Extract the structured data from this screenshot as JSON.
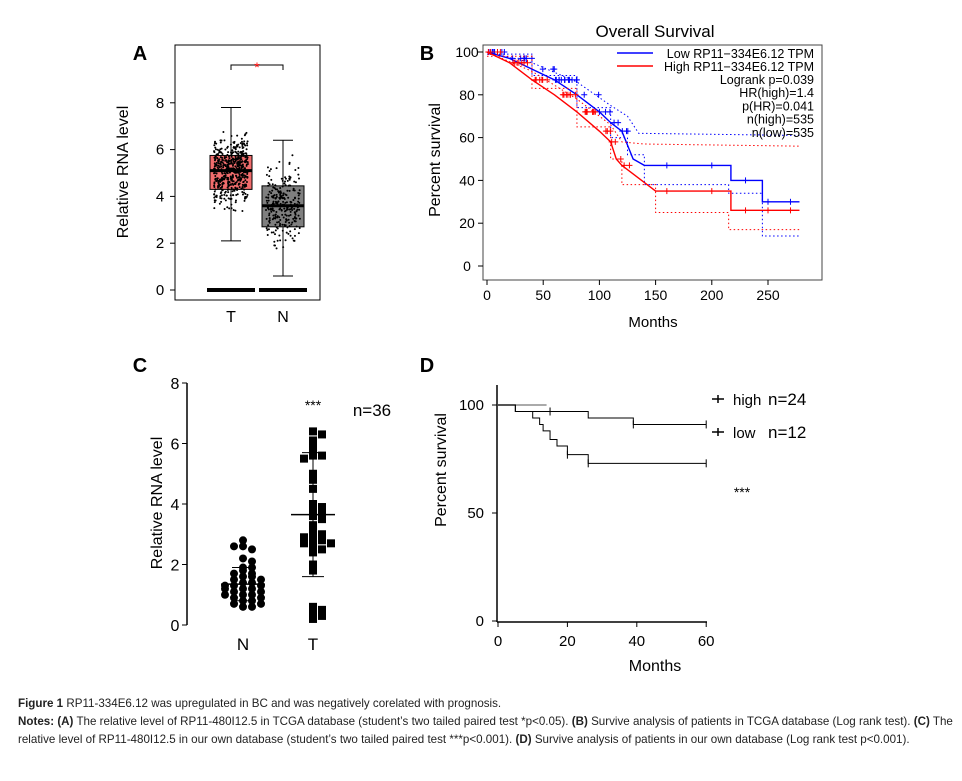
{
  "chart_data": [
    {
      "panel": "A",
      "type": "box",
      "ylabel": "Relative RNA level",
      "yticks": [
        0,
        2,
        4,
        6,
        8
      ],
      "ylim": [
        -0.3,
        10.5
      ],
      "categories": [
        "T",
        "N"
      ],
      "boxes": [
        {
          "category": "T",
          "color": "#f26d6d",
          "min": 2.1,
          "q1": 4.3,
          "median": 5.1,
          "q3": 5.75,
          "max": 7.8,
          "outlier_max": 9.2
        },
        {
          "category": "N",
          "color": "#7f7f7f",
          "min": 0.6,
          "q1": 2.7,
          "median": 3.6,
          "q3": 4.45,
          "max": 6.4,
          "outlier_max": 6.4
        }
      ],
      "significance": "*",
      "significance_color": "#ff0000"
    },
    {
      "panel": "B",
      "type": "line",
      "title": "Overall Survival",
      "xlabel": "Months",
      "ylabel": "Percent survival",
      "xticks": [
        0,
        50,
        100,
        150,
        200,
        250
      ],
      "yticks": [
        0,
        20,
        40,
        60,
        80,
        100
      ],
      "xlim": [
        0,
        280
      ],
      "ylim": [
        -3,
        103
      ],
      "series": [
        {
          "name": "Low RP11−334E6.12 TPM",
          "color": "#0000ff",
          "points": [
            [
              0,
              100
            ],
            [
              20,
              97
            ],
            [
              40,
              92
            ],
            [
              60,
              87
            ],
            [
              80,
              80
            ],
            [
              100,
              72
            ],
            [
              110,
              67
            ],
            [
              120,
              63
            ],
            [
              130,
              50
            ],
            [
              140,
              47
            ],
            [
              217,
              47
            ],
            [
              217,
              40
            ],
            [
              245,
              40
            ],
            [
              245,
              30
            ],
            [
              278,
              30
            ]
          ],
          "ci_upper": [
            [
              0,
              100
            ],
            [
              40,
              95
            ],
            [
              80,
              86
            ],
            [
              110,
              75
            ],
            [
              125,
              70
            ],
            [
              135,
              62
            ],
            [
              278,
              61
            ]
          ],
          "ci_lower": [
            [
              0,
              99
            ],
            [
              40,
              89
            ],
            [
              80,
              74
            ],
            [
              110,
              60
            ],
            [
              125,
              52
            ],
            [
              140,
              38
            ],
            [
              215,
              34
            ],
            [
              245,
              14
            ],
            [
              278,
              14
            ]
          ]
        },
        {
          "name": "High RP11−334E6.12 TPM",
          "color": "#ff0000",
          "points": [
            [
              0,
              100
            ],
            [
              20,
              95
            ],
            [
              40,
              87
            ],
            [
              60,
              80
            ],
            [
              80,
              72
            ],
            [
              100,
              63
            ],
            [
              110,
              58
            ],
            [
              115,
              50
            ],
            [
              120,
              47
            ],
            [
              130,
              43
            ],
            [
              150,
              35
            ],
            [
              217,
              35
            ],
            [
              217,
              26
            ],
            [
              278,
              26
            ]
          ],
          "ci_upper": [
            [
              0,
              100
            ],
            [
              40,
              91
            ],
            [
              80,
              78
            ],
            [
              110,
              66
            ],
            [
              120,
              58
            ],
            [
              140,
              57
            ],
            [
              278,
              56
            ]
          ],
          "ci_lower": [
            [
              0,
              98
            ],
            [
              40,
              83
            ],
            [
              80,
              65
            ],
            [
              110,
              50
            ],
            [
              120,
              38
            ],
            [
              150,
              25
            ],
            [
              215,
              17
            ],
            [
              278,
              17
            ]
          ]
        }
      ],
      "stats": [
        "Logrank p=0.039",
        "HR(high)=1.4",
        "p(HR)=0.041",
        "n(high)=535",
        "n(low)=535"
      ]
    },
    {
      "panel": "C",
      "type": "scatter",
      "ylabel": "Relative RNA level",
      "yticks": [
        0,
        2,
        4,
        6,
        8
      ],
      "ylim": [
        0,
        8
      ],
      "categories": [
        "N",
        "T"
      ],
      "annotation": "n=36",
      "significance": "***",
      "groups": [
        {
          "category": "N",
          "marker": "circle",
          "mean": 1.35,
          "sd": 0.55,
          "values": [
            2.8,
            2.6,
            2.5,
            2.6,
            2.2,
            2.1,
            1.9,
            1.8,
            1.7,
            1.6,
            1.6,
            1.5,
            1.5,
            1.4,
            1.4,
            1.3,
            1.3,
            1.3,
            1.2,
            1.2,
            1.1,
            1.1,
            1.0,
            1.0,
            0.9,
            0.9,
            0.8,
            0.8,
            0.7,
            0.7,
            0.6,
            0.6,
            1.9,
            1.7,
            1.0,
            1.2
          ]
        },
        {
          "category": "T",
          "marker": "square",
          "mean": 3.65,
          "sd": 2.05,
          "values": [
            6.4,
            6.3,
            6.1,
            5.9,
            5.7,
            5.6,
            5.6,
            5.5,
            5.0,
            4.5,
            4.0,
            3.8,
            3.7,
            3.6,
            3.5,
            3.3,
            3.2,
            3.0,
            3.0,
            2.9,
            2.8,
            2.8,
            2.7,
            2.7,
            2.6,
            2.5,
            2.4,
            2.0,
            1.8,
            0.6,
            0.5,
            0.4,
            0.3,
            0.2,
            3.9,
            4.8
          ]
        }
      ]
    },
    {
      "panel": "D",
      "type": "line",
      "xlabel": "Months",
      "ylabel": "Percent survival",
      "xticks": [
        0,
        20,
        40,
        60
      ],
      "yticks": [
        0,
        50,
        100
      ],
      "xlim": [
        0,
        60
      ],
      "ylim": [
        0,
        100
      ],
      "annotation": "***",
      "series": [
        {
          "name": "high",
          "n": "n=24",
          "points": [
            [
              0,
              100
            ],
            [
              5,
              100
            ],
            [
              5,
              97
            ],
            [
              15,
              97
            ],
            [
              15,
              97
            ],
            [
              26,
              97
            ],
            [
              26,
              94
            ],
            [
              39,
              94
            ],
            [
              39,
              91
            ],
            [
              60,
              91
            ]
          ],
          "censor": [
            15,
            39,
            60
          ]
        },
        {
          "name": "low",
          "n": "n=12",
          "points": [
            [
              0,
              100
            ],
            [
              5,
              100
            ],
            [
              5,
              97
            ],
            [
              10,
              97
            ],
            [
              10,
              94
            ],
            [
              12,
              94
            ],
            [
              12,
              91
            ],
            [
              13,
              91
            ],
            [
              13,
              88
            ],
            [
              15,
              88
            ],
            [
              15,
              84
            ],
            [
              17,
              84
            ],
            [
              17,
              81
            ],
            [
              20,
              81
            ],
            [
              20,
              77
            ],
            [
              26,
              77
            ],
            [
              26,
              73
            ],
            [
              60,
              73
            ]
          ],
          "censor": [
            20,
            26,
            60
          ]
        }
      ]
    }
  ],
  "panel_labels": [
    "A",
    "B",
    "C",
    "D"
  ],
  "caption": {
    "figure_label": "Figure 1",
    "title": "RP11-334E6.12 was upregulated in BC and was negatively corelated with prognosis.",
    "notes_label": "Notes:",
    "parts": [
      {
        "label": "(A)",
        "text": "The relative level of RP11-480I12.5 in TCGA database (student’s two tailed paired test *p<0.05)."
      },
      {
        "label": "(B)",
        "text": "Survive analysis of patients in TCGA database (Log rank test)."
      },
      {
        "label": "(C)",
        "text": "The relative level of RP11-480I12.5 in our own database (student’s two tailed paired test ***p<0.001)."
      },
      {
        "label": "(D)",
        "text": "Survive analysis of patients in our own database (Log rank test p<0.001)."
      }
    ]
  }
}
